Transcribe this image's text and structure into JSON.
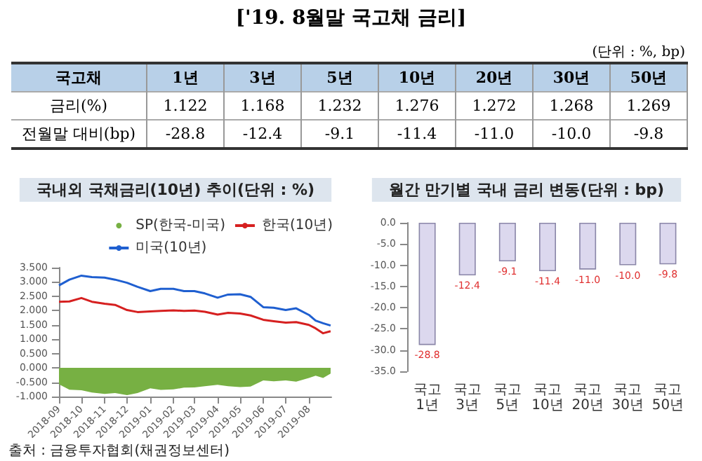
{
  "chart_data": [
    {
      "type": "other",
      "title": "['19. 8월말 국고채 금리]",
      "subtitle": "(단위 : %, bp)",
      "xlabel": "국고채",
      "categories": [
        "1년",
        "3년",
        "5년",
        "10년",
        "20년",
        "30년",
        "50년"
      ],
      "series": [
        {
          "name": "금리(%)",
          "values": [
            1.122,
            1.168,
            1.232,
            1.276,
            1.272,
            1.268,
            1.269
          ],
          "value_labels": [
            "1.122",
            "1.168",
            "1.232",
            "1.276",
            "1.272",
            "1.268",
            "1.269"
          ]
        },
        {
          "name": "전월말 대비(bp)",
          "values": [
            -28.8,
            -12.4,
            -9.1,
            -11.4,
            -11.0,
            -10.0,
            -9.8
          ],
          "value_labels": [
            "-28.8",
            "-12.4",
            "-9.1",
            "-11.4",
            "-11.0",
            "-10.0",
            "-9.8"
          ]
        }
      ]
    },
    {
      "type": "line",
      "title": "국내외 국채금리(10년) 추이(단위 : %)",
      "annotations": [
        "출처 : 금융투자협회(채권정보센터)"
      ],
      "legend": "top right",
      "x": [
        "2018-09-01",
        "2018-09-15",
        "2018-10-01",
        "2018-10-15",
        "2018-11-01",
        "2018-11-15",
        "2018-12-01",
        "2018-12-15",
        "2019-01-01",
        "2019-01-15",
        "2019-02-01",
        "2019-02-15",
        "2019-03-01",
        "2019-03-15",
        "2019-04-01",
        "2019-04-15",
        "2019-05-01",
        "2019-05-15",
        "2019-06-01",
        "2019-06-15",
        "2019-07-01",
        "2019-07-15",
        "2019-08-01",
        "2019-08-10",
        "2019-08-20",
        "2019-08-30"
      ],
      "xlim": [
        "2018-09-01",
        "2019-08-31"
      ],
      "xticks": [
        "2018-09",
        "2018-10",
        "2018-11",
        "2018-12",
        "2019-01",
        "2019-02",
        "2019-03",
        "2019-04",
        "2019-05",
        "2019-06",
        "2019-07",
        "2019-08"
      ],
      "ylim": [
        -1,
        3.5
      ],
      "yticks": [
        {
          "value": -1,
          "label": "-1.000"
        },
        {
          "value": -0.5,
          "label": "-0.500"
        },
        {
          "value": 0,
          "label": "0.000"
        },
        {
          "value": 0.5,
          "label": "0.500"
        },
        {
          "value": 1,
          "label": "1.000"
        },
        {
          "value": 1.5,
          "label": "1.500"
        },
        {
          "value": 2,
          "label": "2.000"
        },
        {
          "value": 2.5,
          "label": "2.500"
        },
        {
          "value": 3,
          "label": "3.000"
        },
        {
          "value": 3.5,
          "label": "3.500"
        }
      ],
      "series": [
        {
          "name": "SP(한국-미국)",
          "type": "area",
          "color": "#77b043",
          "values": [
            -0.57,
            -0.76,
            -0.78,
            -0.86,
            -0.91,
            -0.88,
            -0.95,
            -0.88,
            -0.71,
            -0.77,
            -0.75,
            -0.69,
            -0.68,
            -0.64,
            -0.59,
            -0.64,
            -0.67,
            -0.65,
            -0.44,
            -0.47,
            -0.44,
            -0.48,
            -0.35,
            -0.27,
            -0.35,
            -0.2
          ]
        },
        {
          "name": "한국(10년)",
          "color": "#d62020",
          "values": [
            2.31,
            2.32,
            2.44,
            2.31,
            2.24,
            2.2,
            2.02,
            1.95,
            1.97,
            1.99,
            2.01,
            1.99,
            2.0,
            1.96,
            1.86,
            1.92,
            1.9,
            1.83,
            1.68,
            1.63,
            1.58,
            1.6,
            1.5,
            1.38,
            1.21,
            1.28
          ]
        },
        {
          "name": "미국(10년)",
          "color": "#1f5fd0",
          "values": [
            2.88,
            3.08,
            3.22,
            3.17,
            3.15,
            3.08,
            2.97,
            2.83,
            2.68,
            2.76,
            2.76,
            2.68,
            2.68,
            2.6,
            2.45,
            2.56,
            2.57,
            2.48,
            2.12,
            2.1,
            2.02,
            2.08,
            1.85,
            1.65,
            1.56,
            1.48
          ]
        }
      ]
    },
    {
      "type": "bar",
      "title": "월간 만기별 국내 금리 변동(단위 : bp)",
      "categories": [
        "국고 1년",
        "국고 3년",
        "국고 5년",
        "국고 10년",
        "국고 20년",
        "국고 30년",
        "국고 50년"
      ],
      "values": [
        -28.8,
        -12.4,
        -9.1,
        -11.4,
        -11.0,
        -10.0,
        -9.8
      ],
      "value_labels": [
        "-28.8",
        "-12.4",
        "-9.1",
        "-11.4",
        "-11.0",
        "-10.0",
        "-9.8"
      ],
      "color": "#dcd8ee",
      "ylim": [
        -35,
        0
      ],
      "yticks": [
        {
          "value": -35,
          "label": "-35.0"
        },
        {
          "value": -30,
          "label": "-30.0"
        },
        {
          "value": -25,
          "label": "-25.0"
        },
        {
          "value": -20,
          "label": "-20.0"
        },
        {
          "value": -15,
          "label": "-15.0"
        },
        {
          "value": -10,
          "label": "-10.0"
        },
        {
          "value": -5,
          "label": "-5.0"
        },
        {
          "value": 0,
          "label": "0.0"
        }
      ]
    }
  ]
}
